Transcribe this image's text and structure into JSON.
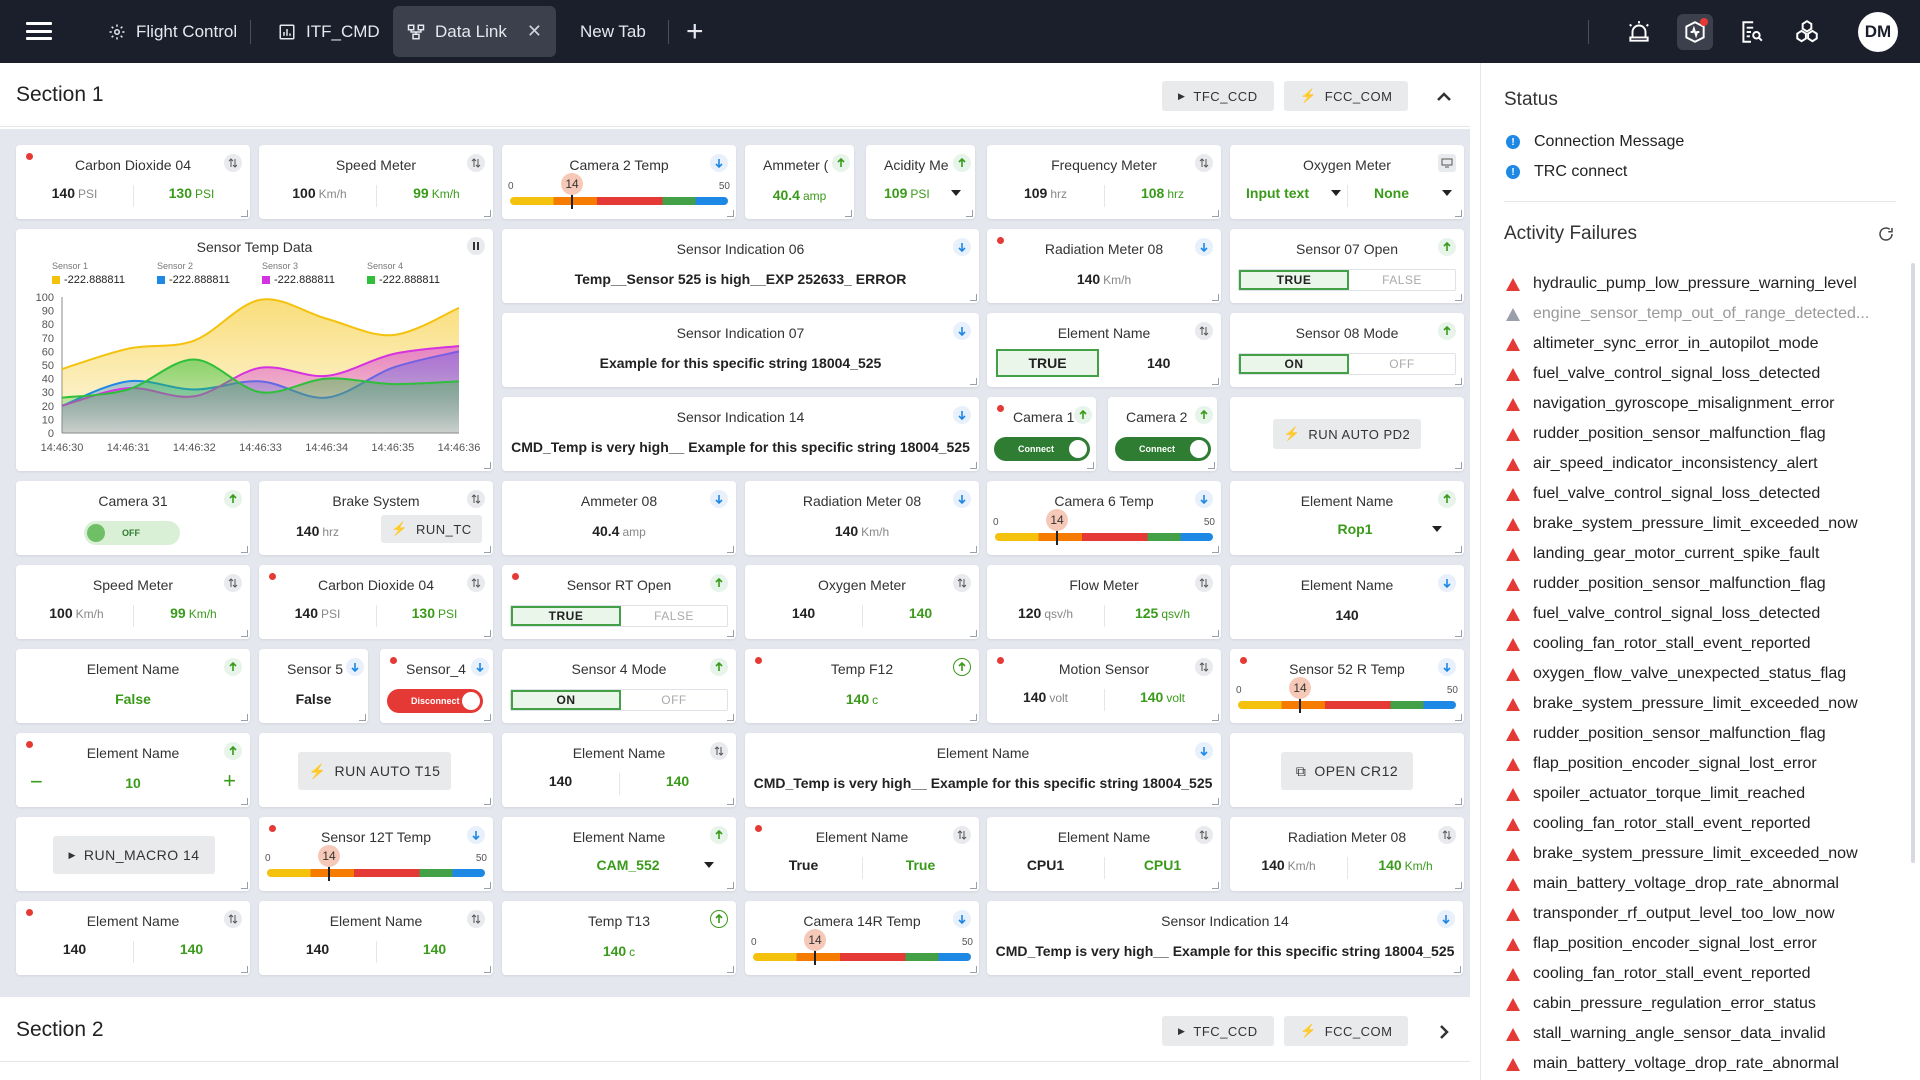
{
  "tabs": [
    {
      "label": "Flight Control",
      "icon": "gear-icon"
    },
    {
      "label": "ITF_CMD",
      "icon": "chart-icon"
    },
    {
      "label": "Data Link",
      "icon": "network-icon"
    },
    {
      "label": "New Tab",
      "icon": ""
    }
  ],
  "user_initials": "DM",
  "section1": {
    "title": "Section 1",
    "btn1": "TFC_CCD",
    "btn2": "FCC_COM"
  },
  "section2": {
    "title": "Section 2",
    "btn1": "TFC_CCD",
    "btn2": "FCC_COM"
  },
  "chart": {
    "title": "Sensor Temp Data",
    "legend": [
      {
        "name": "Sensor 1",
        "value": "-222.888811",
        "color": "#f4c20d"
      },
      {
        "name": "Sensor 2",
        "value": "-222.888811",
        "color": "#1e88e5"
      },
      {
        "name": "Sensor 3",
        "value": "-222.888811",
        "color": "#d633e0"
      },
      {
        "name": "Sensor 4",
        "value": "-222.888811",
        "color": "#2fbf3a"
      }
    ]
  },
  "chart_data": {
    "type": "area",
    "title": "Sensor Temp Data",
    "x": [
      "14:46:30",
      "14:46:31",
      "14:46:32",
      "14:46:33",
      "14:46:34",
      "14:46:35",
      "14:46:36"
    ],
    "ylim": [
      0,
      100
    ],
    "yticks": [
      0,
      10,
      20,
      30,
      40,
      50,
      60,
      70,
      80,
      90,
      100
    ],
    "series": [
      {
        "name": "Sensor 1",
        "values": [
          47,
          62,
          68,
          98,
          84,
          72,
          92
        ]
      },
      {
        "name": "Sensor 2",
        "values": [
          20,
          38,
          32,
          38,
          26,
          48,
          60
        ]
      },
      {
        "name": "Sensor 3",
        "values": [
          20,
          33,
          27,
          48,
          42,
          58,
          64
        ]
      },
      {
        "name": "Sensor 4",
        "values": [
          26,
          32,
          54,
          30,
          40,
          36,
          38
        ]
      }
    ]
  },
  "cards": {
    "co2_04": {
      "title": "Carbon Dioxide 04",
      "v1": "140",
      "u1": "PSI",
      "v2": "130",
      "u2": "PSI"
    },
    "speed": {
      "title": "Speed Meter",
      "v1": "100",
      "u1": "Km/h",
      "v2": "99",
      "u2": "Km/h"
    },
    "cam2temp": {
      "title": "Camera 2 Temp",
      "min": "0",
      "max": "50",
      "value": "14"
    },
    "ammeter_short": {
      "title": "Ammeter (",
      "v": "40.4",
      "u": "amp"
    },
    "acidity": {
      "title": "Acidity Me",
      "v": "109",
      "u": "PSI"
    },
    "freq": {
      "title": "Frequency Meter",
      "v1": "109",
      "u1": "hrz",
      "v2": "108",
      "u2": "hrz"
    },
    "oxygen": {
      "title": "Oxygen Meter",
      "sel1": "Input text",
      "sel2": "None"
    },
    "si06": {
      "title": "Sensor Indication 06",
      "text": "Temp__Sensor 525 is high__EXP 252633_ ERROR"
    },
    "rad08a": {
      "title": "Radiation Meter 08",
      "v": "140",
      "u": "Km/h"
    },
    "s07open": {
      "title": "Sensor 07 Open",
      "on": "TRUE",
      "off": "FALSE"
    },
    "si07": {
      "title": "Sensor Indication 07",
      "text": "Example for this specific string 18004_525"
    },
    "elname_true": {
      "title": "Element Name",
      "btn": "TRUE",
      "v": "140"
    },
    "s08mode": {
      "title": "Sensor 08 Mode",
      "on": "ON",
      "off": "OFF"
    },
    "si14a": {
      "title": "Sensor Indication 14",
      "text": "CMD_Temp is very high__ Example for this specific string 18004_525"
    },
    "cam1": {
      "title": "Camera 1",
      "toggle": "Connect"
    },
    "cam2": {
      "title": "Camera 2",
      "toggle": "Connect"
    },
    "runpd2": {
      "label": "RUN AUTO PD2"
    },
    "cam31": {
      "title": "Camera 31",
      "toggle": "OFF"
    },
    "brake": {
      "title": "Brake System",
      "v": "140",
      "u": "hrz",
      "btn": "RUN_TC"
    },
    "amm08": {
      "title": "Ammeter 08",
      "v": "40.4",
      "u": "amp"
    },
    "rad08b": {
      "title": "Radiation Meter 08",
      "v": "140",
      "u": "Km/h"
    },
    "cam6temp": {
      "title": "Camera 6 Temp",
      "min": "0",
      "max": "50",
      "value": "14"
    },
    "elname_rop": {
      "title": "Element Name",
      "sel": "Rop1"
    },
    "speed2": {
      "title": "Speed Meter",
      "v1": "100",
      "u1": "Km/h",
      "v2": "99",
      "u2": "Km/h"
    },
    "co2_04b": {
      "title": "Carbon Dioxide 04",
      "v1": "140",
      "u1": "PSI",
      "v2": "130",
      "u2": "PSI"
    },
    "srtopen": {
      "title": "Sensor RT Open",
      "on": "TRUE",
      "off": "FALSE"
    },
    "oxy2": {
      "title": "Oxygen Meter",
      "v1": "140",
      "v2": "140"
    },
    "flow": {
      "title": "Flow Meter",
      "v1": "120",
      "u1": "qsv/h",
      "v2": "125",
      "u2": "qsv/h"
    },
    "elname140": {
      "title": "Element Name",
      "v": "140"
    },
    "elname_false": {
      "title": "Element Name",
      "v": "False"
    },
    "sensor5": {
      "title": "Sensor 5",
      "v": "False"
    },
    "sensor4": {
      "title": "Sensor_4",
      "toggle": "Disconnect"
    },
    "s4mode": {
      "title": "Sensor 4 Mode",
      "on": "ON",
      "off": "OFF"
    },
    "tempf12": {
      "title": "Temp F12",
      "v": "140",
      "u": "c"
    },
    "motion": {
      "title": "Motion Sensor",
      "v1": "140",
      "u1": "volt",
      "v2": "140",
      "u2": "volt"
    },
    "s52r": {
      "title": "Sensor 52 R Temp",
      "min": "0",
      "max": "50",
      "value": "14"
    },
    "elname_step": {
      "title": "Element Name",
      "v": "10",
      "minus": "−",
      "plus": "+"
    },
    "runt15": {
      "label": "RUN AUTO T15"
    },
    "elname_2x140": {
      "title": "Element Name",
      "v1": "140",
      "v2": "140"
    },
    "elname_cmd": {
      "title": "Element Name",
      "text": "CMD_Temp is very high__ Example for this specific string 18004_525"
    },
    "opencr12": {
      "label": "OPEN CR12"
    },
    "runmacro": {
      "label": "RUN_MACRO 14"
    },
    "s12t": {
      "title": "Sensor 12T Temp",
      "min": "0",
      "max": "50",
      "value": "14"
    },
    "elname_cam": {
      "title": "Element Name",
      "sel": "CAM_552"
    },
    "elname_tt": {
      "title": "Element Name",
      "v1": "True",
      "v2": "True"
    },
    "elname_cpu": {
      "title": "Element Name",
      "v1": "CPU1",
      "v2": "CPU1"
    },
    "rad08c": {
      "title": "Radiation Meter 08",
      "v1": "140",
      "u1": "Km/h",
      "v2": "140",
      "u2": "Km/h"
    },
    "elname_r8a": {
      "title": "Element Name",
      "v1": "140",
      "v2": "140"
    },
    "elname_r8b": {
      "title": "Element Name",
      "v1": "140",
      "v2": "140"
    },
    "tempt13": {
      "title": "Temp T13",
      "v": "140",
      "u": "c"
    },
    "cam14r": {
      "title": "Camera 14R Temp",
      "min": "0",
      "max": "50",
      "value": "14"
    },
    "si14b": {
      "title": "Sensor Indication 14",
      "text": "CMD_Temp is very high__ Example for this specific string 18004_525"
    }
  },
  "sidebar": {
    "status_title": "Status",
    "status_items": [
      "Connection Message",
      "TRC connect"
    ],
    "failures_title": "Activity Failures",
    "failures": [
      "hydraulic_pump_low_pressure_warning_level",
      "engine_sensor_temp_out_of_range_detected...",
      "altimeter_sync_error_in_autopilot_mode",
      "fuel_valve_control_signal_loss_detected",
      "navigation_gyroscope_misalignment_error",
      "rudder_position_sensor_malfunction_flag",
      "air_speed_indicator_inconsistency_alert",
      "fuel_valve_control_signal_loss_detected",
      "brake_system_pressure_limit_exceeded_now",
      "landing_gear_motor_current_spike_fault",
      "rudder_position_sensor_malfunction_flag",
      "fuel_valve_control_signal_loss_detected",
      "cooling_fan_rotor_stall_event_reported",
      "oxygen_flow_valve_unexpected_status_flag",
      "brake_system_pressure_limit_exceeded_now",
      "rudder_position_sensor_malfunction_flag",
      "flap_position_encoder_signal_lost_error",
      "spoiler_actuator_torque_limit_reached",
      "cooling_fan_rotor_stall_event_reported",
      "brake_system_pressure_limit_exceeded_now",
      "main_battery_voltage_drop_rate_abnormal",
      "transponder_rf_output_level_too_low_now",
      "flap_position_encoder_signal_lost_error",
      "cooling_fan_rotor_stall_event_reported",
      "cabin_pressure_regulation_error_status",
      "stall_warning_angle_sensor_data_invalid",
      "main_battery_voltage_drop_rate_abnormal"
    ]
  }
}
